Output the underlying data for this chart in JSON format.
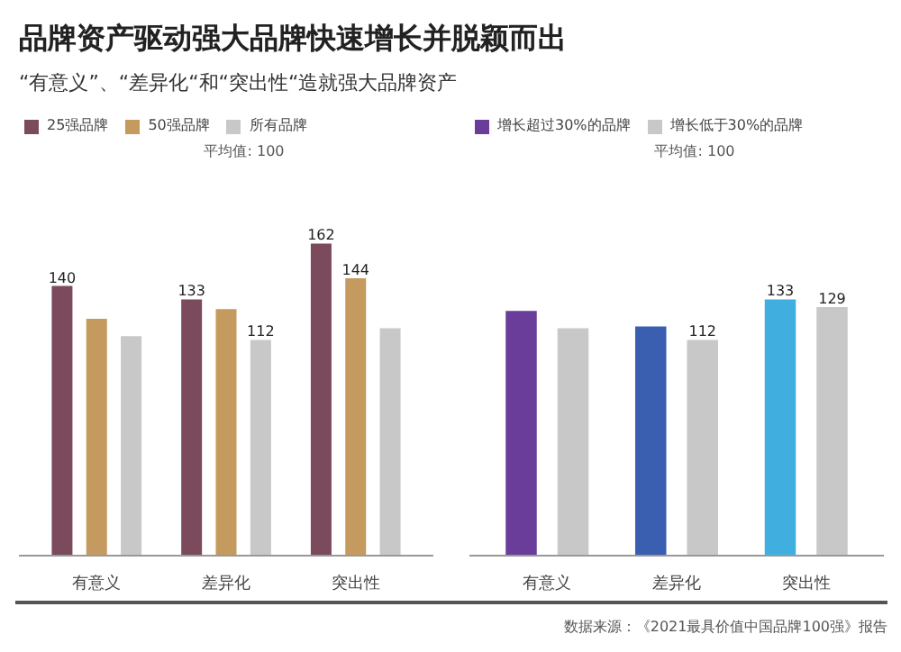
{
  "chart_data": [
    {
      "type": "bar",
      "title": "品牌资产驱动强大品牌快速增长并脱颖而出",
      "subtitle": "“有意义”、“差异化“和“突出性“造就强大品牌资产",
      "categories": [
        "有意义",
        "差异化",
        "突出性"
      ],
      "series": [
        {
          "name": "25强品牌",
          "color": "#7b4a5c",
          "values": [
            140,
            133,
            162
          ],
          "value_labels": [
            "140",
            "133",
            "162"
          ]
        },
        {
          "name": "50强品牌",
          "color": "#c49a5e",
          "values": [
            123,
            128,
            144
          ],
          "value_labels": [
            null,
            null,
            "144"
          ]
        },
        {
          "name": "所有品牌",
          "color": "#c8c8c8",
          "values": [
            114,
            112,
            118
          ],
          "value_labels": [
            null,
            "112",
            null
          ]
        }
      ],
      "ylim": [
        0,
        230
      ],
      "tick_labels": "x",
      "grid": false,
      "legend": "top",
      "annotations": [
        "平均值: 100"
      ]
    },
    {
      "type": "bar",
      "categories": [
        "有意义",
        "差异化",
        "突出性"
      ],
      "series": [
        {
          "name": "增长超过30%的品牌",
          "color": "#6a3d9a",
          "colors": [
            "#6a3d9a",
            "#3a5fb0",
            "#41aee0"
          ],
          "values": [
            127,
            119,
            133
          ],
          "value_labels": [
            null,
            null,
            "133"
          ]
        },
        {
          "name": "增长低于30%的品牌",
          "color": "#c8c8c8",
          "values": [
            118,
            112,
            129
          ],
          "value_labels": [
            null,
            "112",
            "129"
          ]
        }
      ],
      "ylim": [
        0,
        230
      ],
      "tick_labels": "x",
      "grid": false,
      "legend": "top",
      "annotations": [
        "平均值: 100",
        "数据来源：《2021最具价值中国品牌100强》报告"
      ]
    }
  ]
}
